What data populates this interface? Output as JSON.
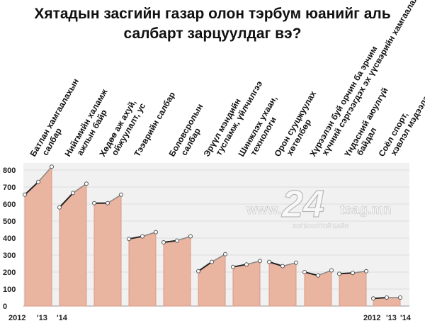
{
  "title_lines": [
    "Хятадын засгийн газар олон тэрбум юанийг аль",
    "салбарт зарцуулдаг вэ?"
  ],
  "watermark": {
    "number": "24",
    "left_text": "www.",
    "right_text": "tsag.mn",
    "tagline": "ХОГБООЛТОЙ БАЙЯ"
  },
  "colors": {
    "area": "#e9b4a0",
    "area_edge": "#d89a86",
    "line": "#222222",
    "point": "#ffffff",
    "grid": "#dddddd",
    "background_panel": "#f1f1f1"
  },
  "chart_data": {
    "type": "line",
    "title": "Хятадын засгийн газар олон тэрбум юанийг аль салбарт зарцуулдаг вэ?",
    "ylim": [
      0,
      800
    ],
    "yticks": [
      0,
      100,
      200,
      300,
      400,
      500,
      600,
      700,
      800
    ],
    "grid": true,
    "x_labels": [
      "2012",
      "'13",
      "'14"
    ],
    "x_labels_second": [
      "2012",
      "'13",
      "'14"
    ],
    "categories": [
      "Батлан хамгаалахын салбар",
      "Нийгмийн халамж ажлын байр",
      "Хөдөө аж ахуй, ойжуулалт, ус",
      "Тээврийн салбар",
      "Боловсролын салбар",
      "Эрүүл мэндийн тусламж, үйлчилгээ",
      "Шинжлэх ухаан, технологи",
      "Орон сууцжуулах хөтөлбөр",
      "Хүрээлэн буй орчин ба эрчим хүчний сэргээгдэх эх үүсвэрийн хамгаалалт",
      "Үндэсний аюулгүй байдал",
      "Соёл спорт, хэвлэл мэдээлэл"
    ],
    "series": [
      {
        "values": [
          [
            655,
            730,
            820
          ],
          [
            580,
            665,
            720
          ],
          [
            605,
            605,
            655
          ],
          [
            395,
            410,
            435
          ],
          [
            375,
            385,
            410
          ],
          [
            205,
            260,
            305
          ],
          [
            230,
            245,
            265
          ],
          [
            260,
            235,
            255
          ],
          [
            200,
            180,
            210
          ],
          [
            190,
            195,
            205
          ],
          [
            45,
            50,
            50
          ]
        ]
      }
    ]
  }
}
